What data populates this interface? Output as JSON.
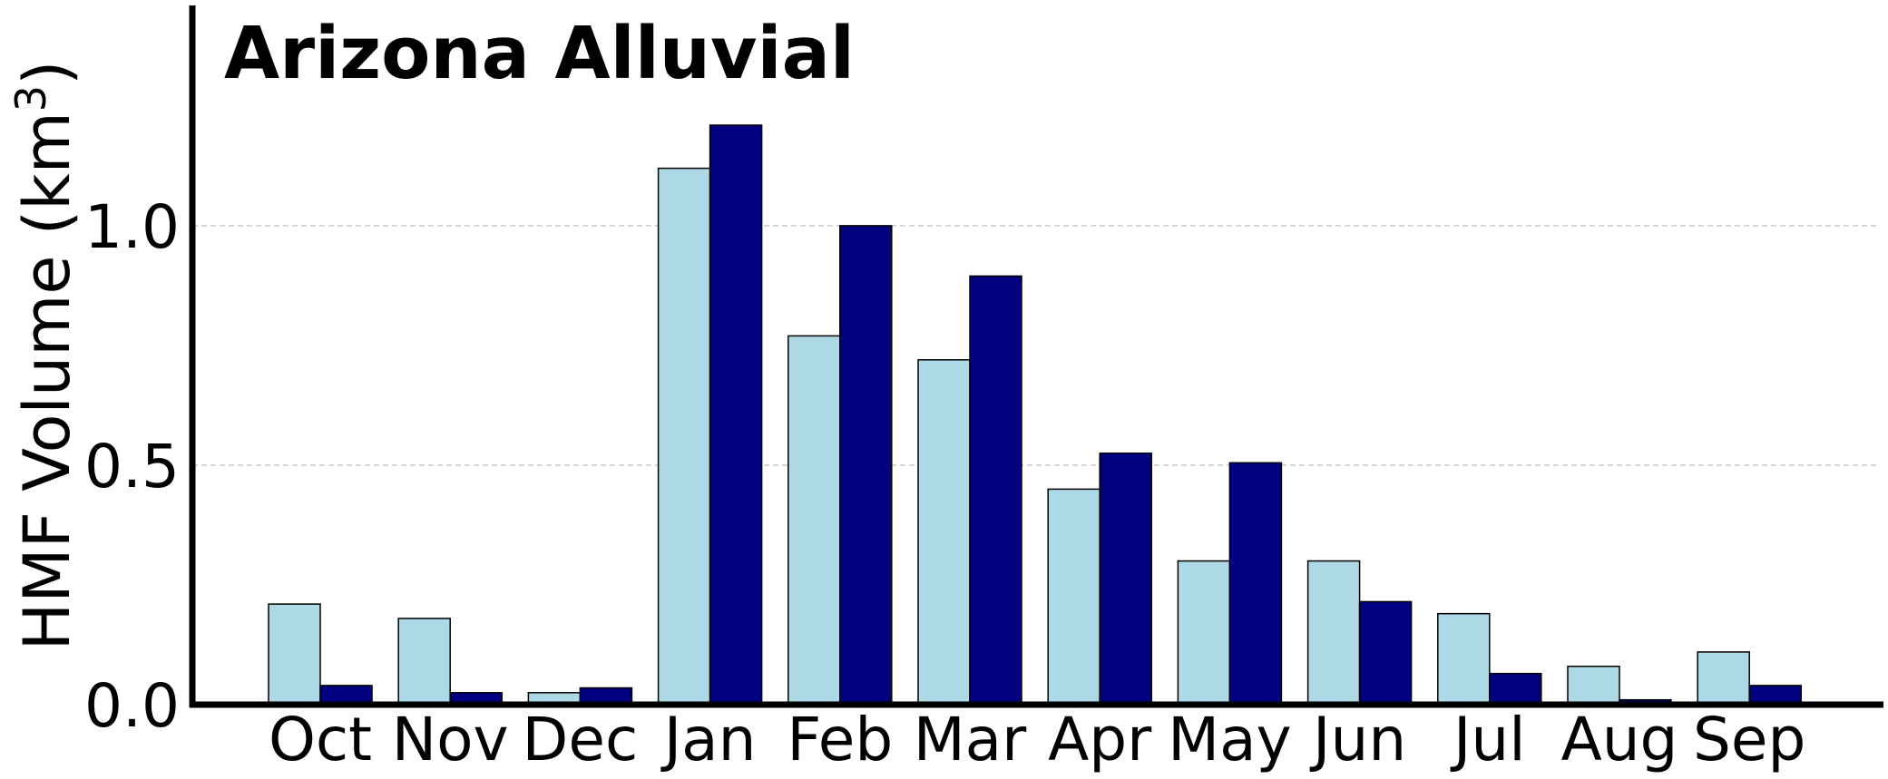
{
  "chart_data": {
    "type": "bar",
    "title": "Arizona Alluvial",
    "ylabel": "HMF Volume (km",
    "ylabel_superscript": "3",
    "ylabel_close": ")",
    "xlabel": "",
    "categories": [
      "Oct",
      "Nov",
      "Dec",
      "Jan",
      "Feb",
      "Mar",
      "Apr",
      "May",
      "Jun",
      "Jul",
      "Aug",
      "Sep"
    ],
    "series": [
      {
        "color": "#add8e6",
        "values": [
          0.21,
          0.18,
          0.025,
          1.12,
          0.77,
          0.72,
          0.45,
          0.3,
          0.3,
          0.19,
          0.08,
          0.11
        ]
      },
      {
        "color": "#000080",
        "values": [
          0.04,
          0.025,
          0.035,
          1.21,
          1.0,
          0.895,
          0.525,
          0.505,
          0.215,
          0.065,
          0.01,
          0.04
        ]
      }
    ],
    "yticks": [
      "0.0",
      "0.5",
      "1.0"
    ],
    "ytick_values": [
      0,
      0.5,
      1.0
    ],
    "ylim": [
      0,
      1.46
    ],
    "grid": "horizontal dashed"
  }
}
